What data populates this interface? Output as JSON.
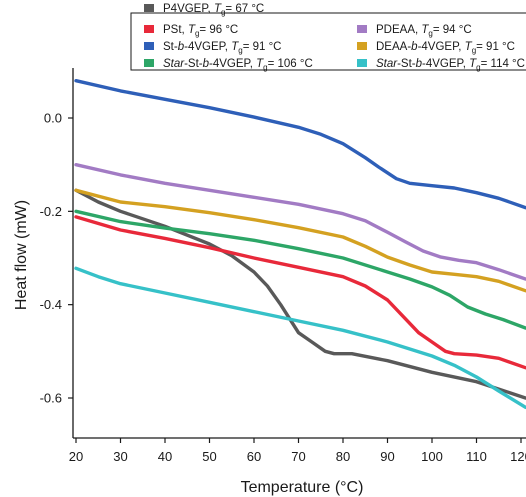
{
  "chart_data": {
    "type": "line",
    "xlabel": "Temperature (°C)",
    "ylabel": "Heat flow (mW)",
    "xlim": [
      20,
      121
    ],
    "ylim": [
      -0.625,
      0.1
    ],
    "x_ticks": [
      20,
      30,
      40,
      50,
      60,
      70,
      80,
      90,
      100,
      110,
      120
    ],
    "x_tick_labels": [
      "20",
      "30",
      "40",
      "50",
      "60",
      "70",
      "80",
      "90",
      "100",
      "110",
      "120"
    ],
    "y_ticks": [
      0.0,
      -0.2,
      -0.4,
      -0.6
    ],
    "y_tick_labels": [
      "0.0",
      "-0.2",
      "-0.4",
      "-0.6"
    ],
    "legend_position": "top",
    "series": [
      {
        "name": "P4VGEP",
        "tg": "67 °C",
        "color": "#595959",
        "points": [
          [
            20,
            -0.155
          ],
          [
            25,
            -0.18
          ],
          [
            30,
            -0.2
          ],
          [
            40,
            -0.232
          ],
          [
            50,
            -0.27
          ],
          [
            55,
            -0.295
          ],
          [
            60,
            -0.33
          ],
          [
            63,
            -0.36
          ],
          [
            66,
            -0.4
          ],
          [
            68,
            -0.43
          ],
          [
            70,
            -0.46
          ],
          [
            73,
            -0.48
          ],
          [
            76,
            -0.5
          ],
          [
            78,
            -0.505
          ],
          [
            82,
            -0.505
          ],
          [
            90,
            -0.52
          ],
          [
            100,
            -0.545
          ],
          [
            110,
            -0.565
          ],
          [
            121,
            -0.6
          ]
        ]
      },
      {
        "name": "PSt",
        "tg": "96 °C",
        "color": "#e8293a",
        "points": [
          [
            20,
            -0.212
          ],
          [
            30,
            -0.24
          ],
          [
            40,
            -0.258
          ],
          [
            50,
            -0.278
          ],
          [
            60,
            -0.3
          ],
          [
            70,
            -0.32
          ],
          [
            80,
            -0.34
          ],
          [
            85,
            -0.36
          ],
          [
            90,
            -0.39
          ],
          [
            94,
            -0.43
          ],
          [
            97,
            -0.46
          ],
          [
            100,
            -0.48
          ],
          [
            103,
            -0.5
          ],
          [
            105,
            -0.505
          ],
          [
            110,
            -0.508
          ],
          [
            115,
            -0.515
          ],
          [
            121,
            -0.535
          ]
        ]
      },
      {
        "name": "St-b-4VGEP",
        "tg": "91 °C",
        "color": "#2e5fb8",
        "points": [
          [
            20,
            0.08
          ],
          [
            30,
            0.058
          ],
          [
            40,
            0.04
          ],
          [
            50,
            0.022
          ],
          [
            60,
            0.002
          ],
          [
            70,
            -0.02
          ],
          [
            75,
            -0.035
          ],
          [
            80,
            -0.055
          ],
          [
            85,
            -0.085
          ],
          [
            88,
            -0.105
          ],
          [
            92,
            -0.13
          ],
          [
            95,
            -0.14
          ],
          [
            100,
            -0.145
          ],
          [
            105,
            -0.15
          ],
          [
            110,
            -0.16
          ],
          [
            115,
            -0.172
          ],
          [
            121,
            -0.192
          ]
        ]
      },
      {
        "name": "Star-St-b-4VGEP",
        "tg": "106 °C",
        "color": "#2da667",
        "points": [
          [
            20,
            -0.2
          ],
          [
            30,
            -0.222
          ],
          [
            40,
            -0.236
          ],
          [
            50,
            -0.248
          ],
          [
            60,
            -0.262
          ],
          [
            70,
            -0.28
          ],
          [
            80,
            -0.3
          ],
          [
            90,
            -0.33
          ],
          [
            95,
            -0.345
          ],
          [
            100,
            -0.362
          ],
          [
            104,
            -0.38
          ],
          [
            108,
            -0.405
          ],
          [
            112,
            -0.42
          ],
          [
            116,
            -0.432
          ],
          [
            121,
            -0.45
          ]
        ]
      },
      {
        "name": "PDEAA",
        "tg": "94 °C",
        "color": "#a27bc4",
        "points": [
          [
            20,
            -0.1
          ],
          [
            30,
            -0.122
          ],
          [
            40,
            -0.14
          ],
          [
            50,
            -0.155
          ],
          [
            60,
            -0.17
          ],
          [
            70,
            -0.185
          ],
          [
            80,
            -0.205
          ],
          [
            85,
            -0.22
          ],
          [
            90,
            -0.245
          ],
          [
            94,
            -0.265
          ],
          [
            98,
            -0.285
          ],
          [
            102,
            -0.298
          ],
          [
            106,
            -0.305
          ],
          [
            110,
            -0.31
          ],
          [
            115,
            -0.325
          ],
          [
            121,
            -0.345
          ]
        ]
      },
      {
        "name": "DEAA-b-4VGEP",
        "tg": "91 °C",
        "color": "#d4a121",
        "points": [
          [
            20,
            -0.155
          ],
          [
            30,
            -0.18
          ],
          [
            40,
            -0.19
          ],
          [
            50,
            -0.203
          ],
          [
            60,
            -0.218
          ],
          [
            70,
            -0.235
          ],
          [
            80,
            -0.255
          ],
          [
            85,
            -0.275
          ],
          [
            90,
            -0.298
          ],
          [
            95,
            -0.315
          ],
          [
            100,
            -0.33
          ],
          [
            105,
            -0.335
          ],
          [
            110,
            -0.34
          ],
          [
            115,
            -0.35
          ],
          [
            121,
            -0.37
          ]
        ]
      },
      {
        "name": "Star-St-b-4VGEP",
        "tg": "114 °C",
        "color": "#36c1c8",
        "points": [
          [
            20,
            -0.322
          ],
          [
            25,
            -0.34
          ],
          [
            30,
            -0.355
          ],
          [
            40,
            -0.375
          ],
          [
            50,
            -0.395
          ],
          [
            60,
            -0.415
          ],
          [
            70,
            -0.435
          ],
          [
            80,
            -0.455
          ],
          [
            90,
            -0.48
          ],
          [
            100,
            -0.51
          ],
          [
            105,
            -0.53
          ],
          [
            110,
            -0.555
          ],
          [
            115,
            -0.585
          ],
          [
            121,
            -0.62
          ]
        ]
      }
    ]
  }
}
